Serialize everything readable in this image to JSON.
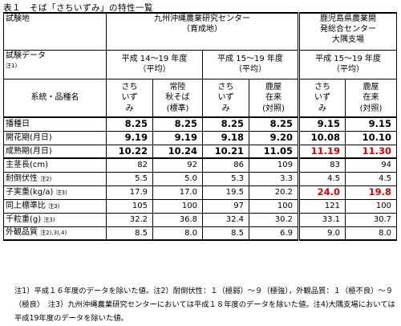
{
  "title": "表１　そば「さちいずみ」の特性一覧",
  "header": {
    "site_label": "試験地",
    "org1": "九州沖縄農業研究センター",
    "org1_sub": "（育成地）",
    "org2_line1": "鹿児島県農業開",
    "org2_line2": "発総合センター",
    "org2_line3": "大隅支場",
    "data_label": "試験データ",
    "data_note": "注1)",
    "period1_line1": "平成 14～19 年度",
    "period1_line2": "（平均）",
    "period2_line1": "平成 15～19 年度",
    "period2_line2": "（平均）",
    "period3_line1": "平成 15～19 年度",
    "period3_line2": "（平均）",
    "variety_label": "系統・品種名",
    "varieties": [
      {
        "line1": "さち",
        "line2": "いず",
        "line3": "み"
      },
      {
        "line1": "常陸",
        "line2": "秋そば",
        "line3": "(標準)"
      },
      {
        "line1": "さち",
        "line2": "いず",
        "line3": "み"
      },
      {
        "line1": "鹿屋",
        "line2": "在来",
        "line3": "(対照)"
      },
      {
        "line1": "さち",
        "line2": "いず",
        "line3": "み"
      },
      {
        "line1": "鹿屋",
        "line2": "在来",
        "line3": "(対照)"
      }
    ]
  },
  "rows": [
    {
      "label": "播種日",
      "note": "",
      "values": [
        "8.25",
        "8.25",
        "8.25",
        "8.25",
        "9.15",
        "9.15"
      ]
    },
    {
      "label": "開花期(月日)",
      "note": "",
      "values": [
        "9.19",
        "9.19",
        "9.18",
        "9.20",
        "10.08",
        "10.10"
      ]
    },
    {
      "label": "成熟期(月日)",
      "note": "",
      "values": [
        "10.22",
        "10.24",
        "10.21",
        "11.05",
        "11.19",
        "11.30"
      ]
    },
    {
      "label": "主茎長(cm)",
      "note": "",
      "values": [
        "82",
        "92",
        "86",
        "109",
        "83",
        "94"
      ]
    },
    {
      "label": "耐倒伏性",
      "note": "注2)",
      "values": [
        "5.5",
        "5.0",
        "5.3",
        "3.3",
        "4.5",
        "4.5"
      ]
    },
    {
      "label": "子実重(kg/a)",
      "note": "注3)",
      "values": [
        "17.9",
        "17.0",
        "19.5",
        "20.2",
        "24.0",
        "19.8"
      ]
    },
    {
      "label": "同上標準比",
      "note": "注3)",
      "values": [
        "105",
        "100",
        "97",
        "100",
        "121",
        "100"
      ]
    },
    {
      "label": "千粒重(g)",
      "note": "注3)",
      "values": [
        "32.2",
        "36.8",
        "32.4",
        "30.2",
        "33.1",
        "30.7"
      ]
    },
    {
      "label": "外観品質",
      "note": "注2),3),4)",
      "values": [
        "8.5",
        "8.0",
        "8.5",
        "6.9",
        "9.0",
        "8.0"
      ]
    }
  ],
  "colors": {
    "highlight": "#e00000"
  },
  "notes": "注1）平成１６年度のデータを除いた値。注2）耐倒伏性：１（極弱）～９（極強），外観品質：１（極不良）～９（極良）　注3）九州沖縄農業研究センターにおいては平成１８年度のデータを除いた値。注4)大隅支場においては平成19年度のデータを除いた値。"
}
